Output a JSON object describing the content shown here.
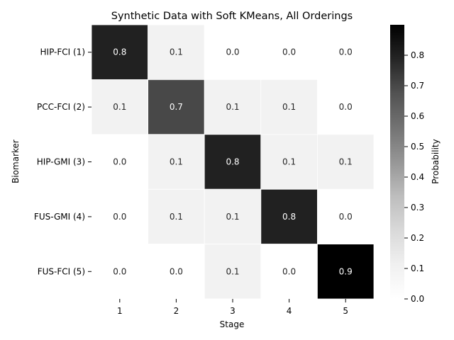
{
  "chart_data": {
    "type": "heatmap",
    "title": "Synthetic Data with Soft KMeans, All Orderings",
    "xlabel": "Stage",
    "ylabel": "Biomarker",
    "x_categories": [
      "1",
      "2",
      "3",
      "4",
      "5"
    ],
    "y_categories": [
      "HIP-FCI (1)",
      "PCC-FCI (2)",
      "HIP-GMI (3)",
      "FUS-GMI (4)",
      "FUS-FCI (5)"
    ],
    "values": [
      [
        0.8,
        0.1,
        0.0,
        0.0,
        0.0
      ],
      [
        0.1,
        0.7,
        0.1,
        0.1,
        0.0
      ],
      [
        0.0,
        0.1,
        0.8,
        0.1,
        0.1
      ],
      [
        0.0,
        0.1,
        0.1,
        0.8,
        0.0
      ],
      [
        0.0,
        0.0,
        0.1,
        0.0,
        0.9
      ]
    ],
    "colorbar": {
      "label": "Probability",
      "range": [
        0.0,
        0.9
      ],
      "ticks": [
        "0.0",
        "0.1",
        "0.2",
        "0.3",
        "0.4",
        "0.5",
        "0.6",
        "0.7",
        "0.8"
      ]
    },
    "colormap": "Greys",
    "grid": false
  }
}
